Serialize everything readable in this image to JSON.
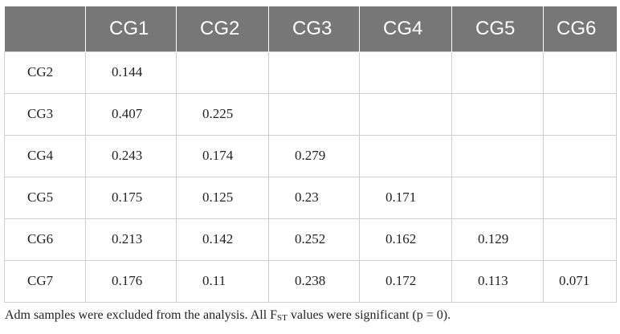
{
  "table": {
    "corner": "",
    "columns": [
      "CG1",
      "CG2",
      "CG3",
      "CG4",
      "CG5",
      "CG6"
    ],
    "rows": [
      {
        "label": "CG2",
        "cells": [
          "0.144",
          "",
          "",
          "",
          "",
          ""
        ]
      },
      {
        "label": "CG3",
        "cells": [
          "0.407",
          "0.225",
          "",
          "",
          "",
          ""
        ]
      },
      {
        "label": "CG4",
        "cells": [
          "0.243",
          "0.174",
          "0.279",
          "",
          "",
          ""
        ]
      },
      {
        "label": "CG5",
        "cells": [
          "0.175",
          "0.125",
          "0.23",
          "0.171",
          "",
          ""
        ]
      },
      {
        "label": "CG6",
        "cells": [
          "0.213",
          "0.142",
          "0.252",
          "0.162",
          "0.129",
          ""
        ]
      },
      {
        "label": "CG7",
        "cells": [
          "0.176",
          "0.11",
          "0.238",
          "0.172",
          "0.113",
          "0.071"
        ]
      }
    ]
  },
  "footnote": {
    "part1": "Adm samples were excluded from the analysis. All F",
    "subscript": "ST",
    "part2": " values were significant (p = 0)."
  },
  "colors": {
    "header_bg": "#777777",
    "header_text": "#ffffff",
    "grid_line": "#cfcfcf"
  }
}
